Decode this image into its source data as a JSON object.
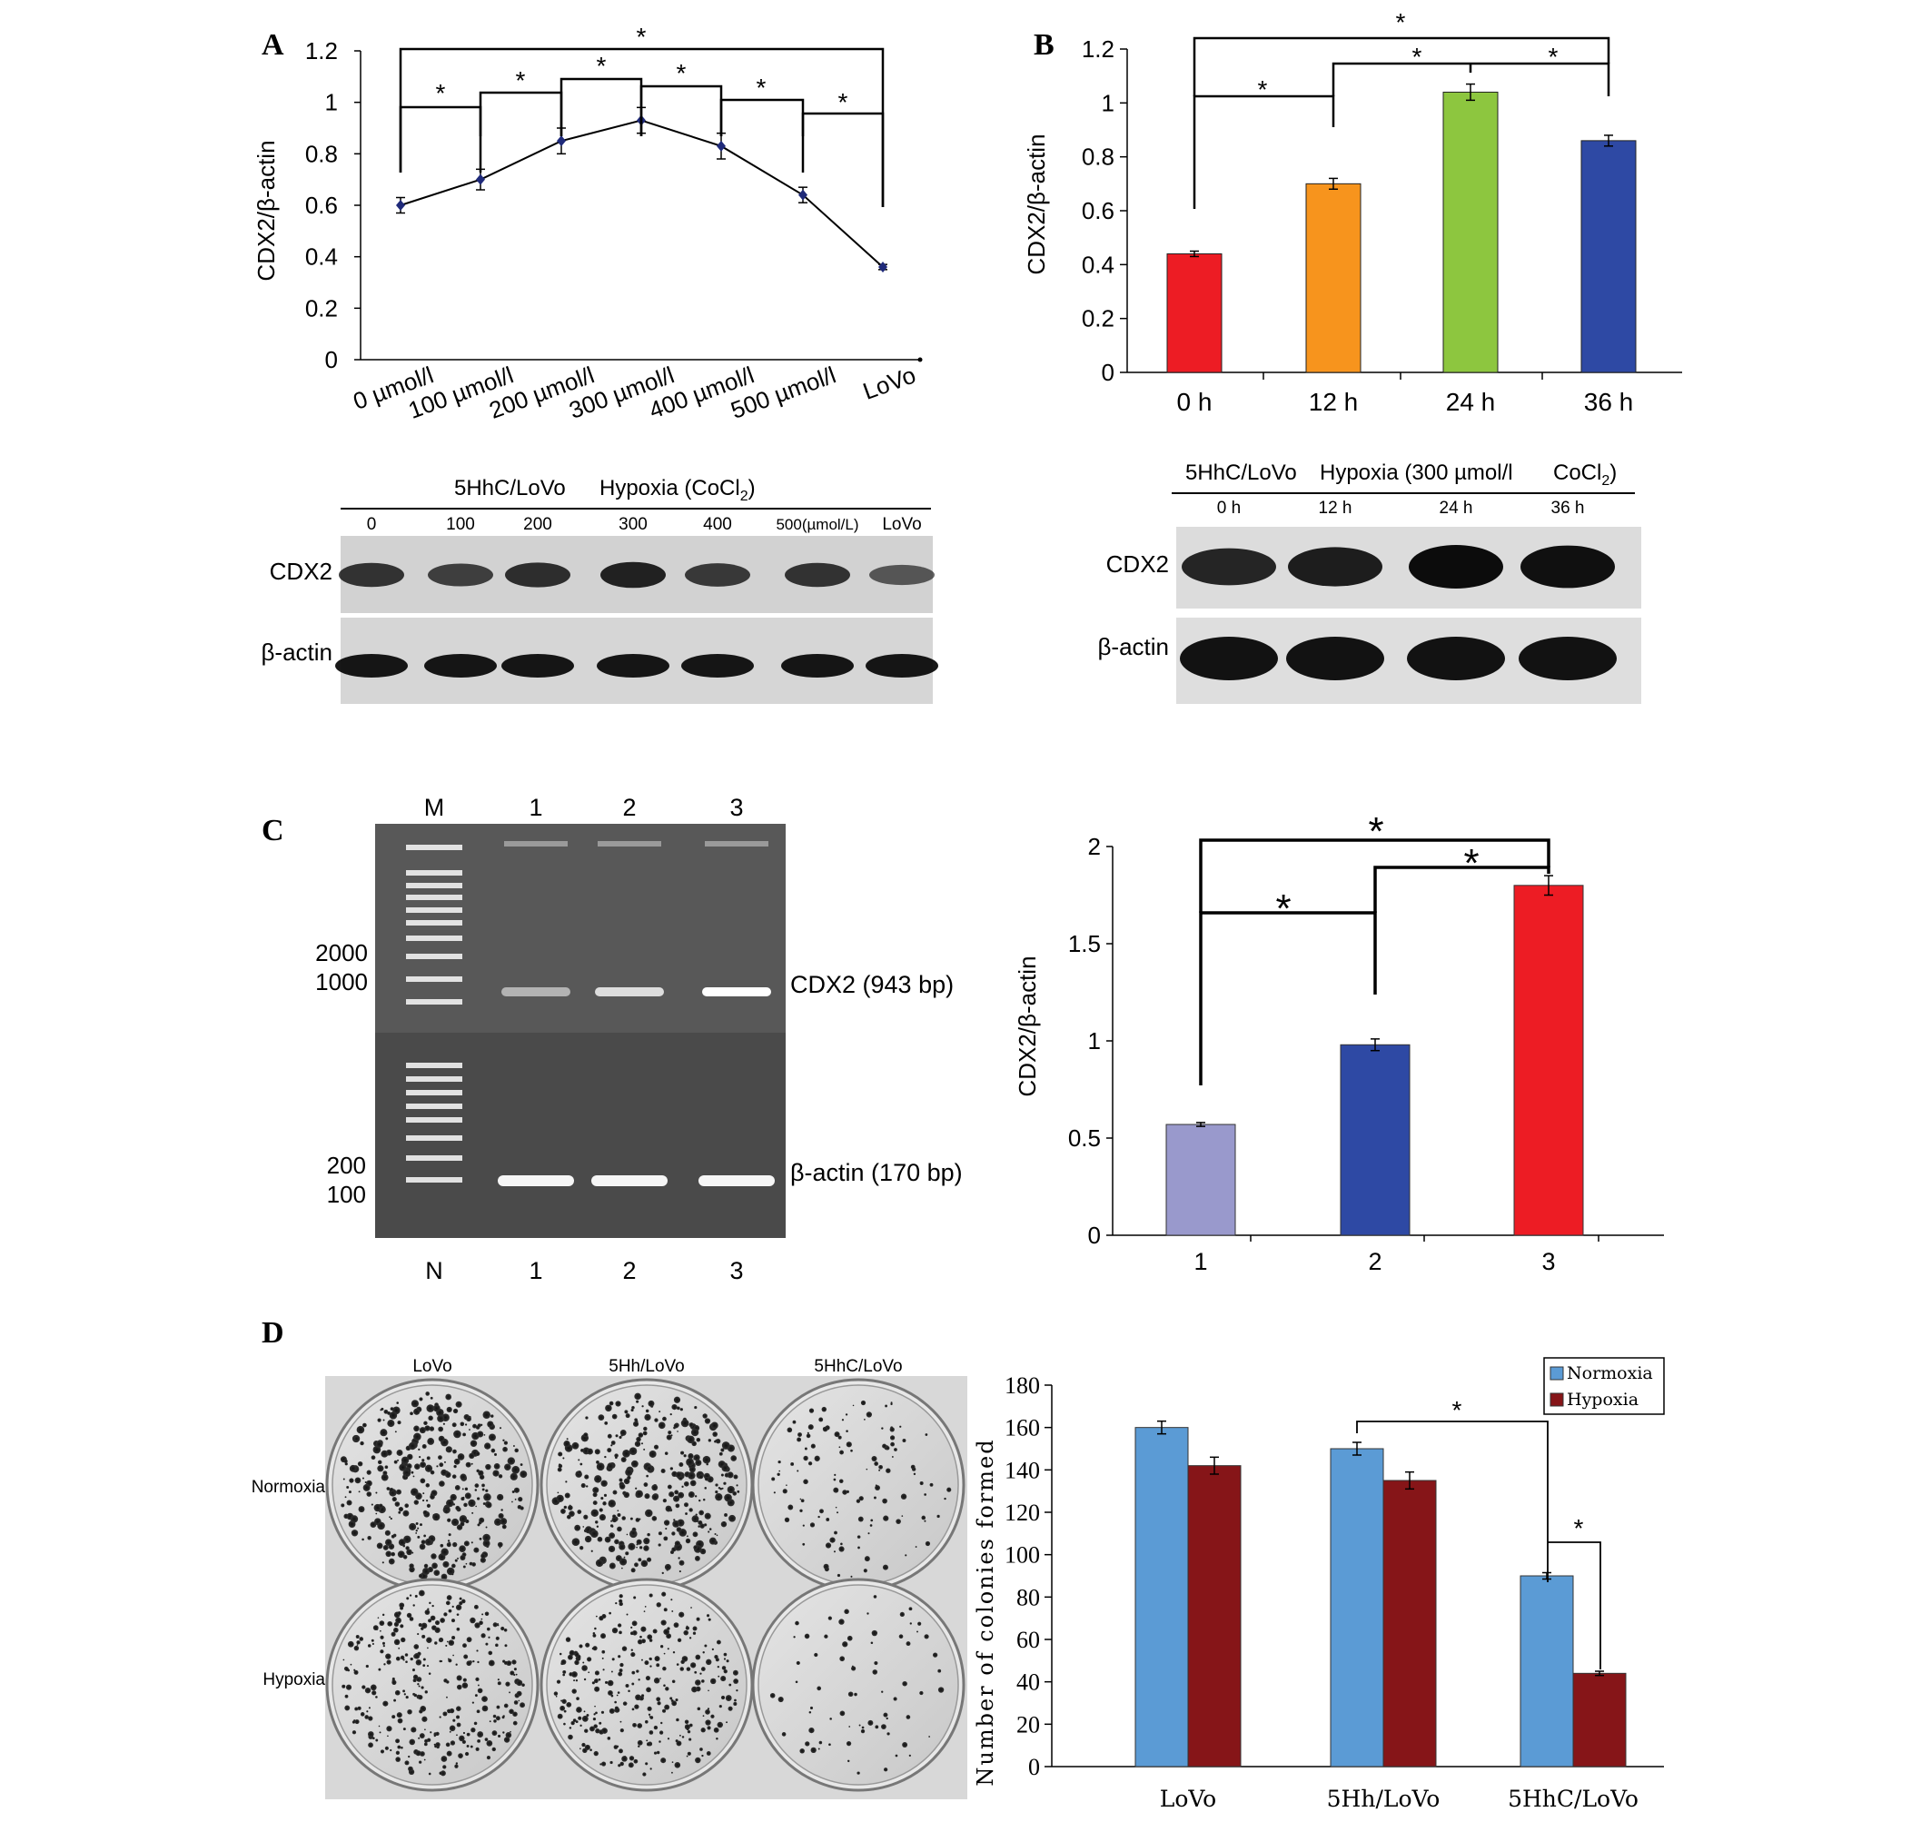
{
  "panels": {
    "A": {
      "letter": "A",
      "chart_data": {
        "type": "line",
        "ylabel": "CDX2/β-actin",
        "ylim": [
          0,
          1.2
        ],
        "yticks": [
          "0",
          "0.2",
          "0.4",
          "0.6",
          "0.8",
          "1",
          "1.2"
        ],
        "categories": [
          "0 µmol/l",
          "100 µmol/l",
          "200 µmol/l",
          "300 µmol/l",
          "400 µmol/l",
          "500 µmol/l",
          "LoVo"
        ],
        "values": [
          0.6,
          0.7,
          0.85,
          0.93,
          0.83,
          0.64,
          0.36
        ],
        "errors": [
          0.03,
          0.04,
          0.05,
          0.05,
          0.05,
          0.03,
          0.01
        ],
        "star": "*"
      },
      "blot": {
        "header_left": "5HhC/LoVo",
        "header_right": "Hypoxia (CoCl",
        "header_sub": "2",
        "header_close": ")",
        "lanes": [
          "0",
          "100",
          "200",
          "300",
          "400",
          "500(µmol/L)",
          "LoVo"
        ],
        "row1": "CDX2",
        "row2": "β-actin",
        "intensity": [
          0.75,
          0.65,
          0.8,
          0.9,
          0.7,
          0.75,
          0.45
        ]
      }
    },
    "B": {
      "letter": "B",
      "chart_data": {
        "type": "bar",
        "ylabel": "CDX2/β-actin",
        "ylim": [
          0,
          1.2
        ],
        "yticks": [
          "0",
          "0.2",
          "0.4",
          "0.6",
          "0.8",
          "1",
          "1.2"
        ],
        "categories": [
          "0 h",
          "12 h",
          "24 h",
          "36 h"
        ],
        "values": [
          0.44,
          0.7,
          1.04,
          0.86
        ],
        "errors": [
          0.01,
          0.02,
          0.03,
          0.02
        ],
        "colors": [
          "#ed1c24",
          "#f7941d",
          "#8dc63f",
          "#2e49a4"
        ],
        "star": "*"
      },
      "blot": {
        "header_left": "5HhC/LoVo",
        "header_mid": "Hypoxia (300 µmol/l",
        "header_right": "CoCl",
        "header_sub": "2",
        "header_close": ")",
        "lanes": [
          "0 h",
          "12 h",
          "24 h",
          "36 h"
        ],
        "row1": "CDX2",
        "row2": "β-actin"
      }
    },
    "C": {
      "letter": "C",
      "gel": {
        "top_labels": [
          "M",
          "1",
          "2",
          "3"
        ],
        "bottom_labels": [
          "N",
          "1",
          "2",
          "3"
        ],
        "markers_top": [
          "2000",
          "1000"
        ],
        "markers_bottom": [
          "200",
          "100"
        ],
        "band1": "CDX2 (943 bp)",
        "band2": "β-actin (170 bp)"
      },
      "chart_data": {
        "type": "bar",
        "ylabel": "CDX2/β-actin",
        "ylim": [
          0,
          2
        ],
        "yticks": [
          "0",
          "0.5",
          "1",
          "1.5",
          "2"
        ],
        "categories": [
          "1",
          "2",
          "3"
        ],
        "values": [
          0.57,
          0.98,
          1.8
        ],
        "errors": [
          0.01,
          0.03,
          0.05
        ],
        "colors": [
          "#9999cc",
          "#2e49a4",
          "#ed1c24"
        ],
        "star": "*"
      }
    },
    "D": {
      "letter": "D",
      "plates": {
        "columns": [
          "LoVo",
          "5Hh/LoVo",
          "5HhC/LoVo"
        ],
        "rows": [
          "Normoxia",
          "Hypoxia"
        ],
        "density": [
          [
            1.0,
            0.95,
            0.35
          ],
          [
            0.9,
            0.85,
            0.2
          ]
        ]
      },
      "chart_data": {
        "type": "bar",
        "ylabel": "Number of colonies formed",
        "ylim": [
          0,
          180
        ],
        "yticks": [
          "0",
          "20",
          "40",
          "60",
          "80",
          "100",
          "120",
          "140",
          "160",
          "180"
        ],
        "categories": [
          "LoVo",
          "5Hh/LoVo",
          "5HhC/LoVo"
        ],
        "series": [
          {
            "name": "Normoxia",
            "values": [
              160,
              150,
              90
            ],
            "errors": [
              3,
              3,
              1.5
            ],
            "color": "#5b9bd5"
          },
          {
            "name": "Hypoxia",
            "values": [
              142,
              135,
              44
            ],
            "errors": [
              4,
              4,
              1
            ],
            "color": "#861518"
          }
        ],
        "legend_position": "top-right",
        "star": "*"
      }
    }
  }
}
